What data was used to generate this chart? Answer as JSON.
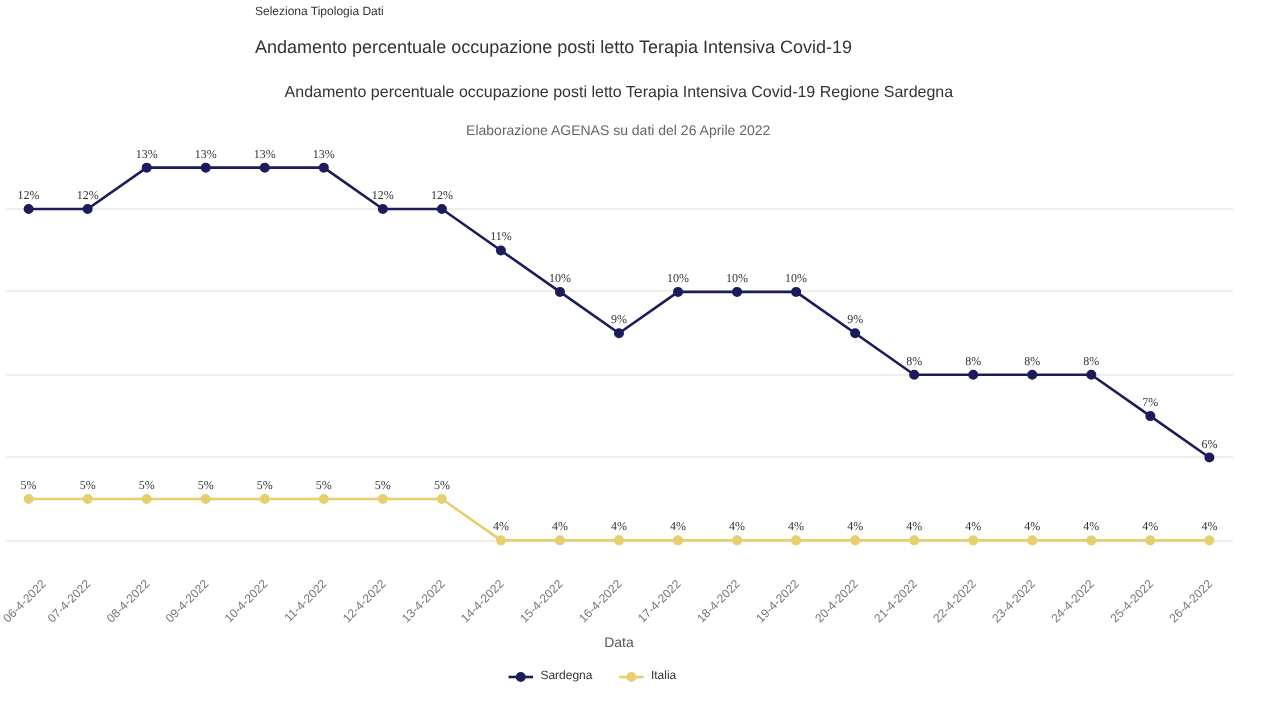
{
  "chart_data": {
    "type": "line",
    "title": "Andamento percentuale occupazione posti letto Terapia Intensiva Covid-19 Regione Sardegna",
    "subtitle": "Elaborazione AGENAS su dati del 26 Aprile 2022",
    "xlabel": "Data",
    "annotations": [
      "Seleziona Tipologia Dati",
      "Andamento percentuale occupazione posti letto Terapia Intensiva Covid-19"
    ],
    "categories": [
      "06-4-2022",
      "07-4-2022",
      "08-4-2022",
      "09-4-2022",
      "10-4-2022",
      "11-4-2022",
      "12-4-2022",
      "13-4-2022",
      "14-4-2022",
      "15-4-2022",
      "16-4-2022",
      "17-4-2022",
      "18-4-2022",
      "19-4-2022",
      "20-4-2022",
      "21-4-2022",
      "22-4-2022",
      "23-4-2022",
      "24-4-2022",
      "25-4-2022",
      "26-4-2022"
    ],
    "series": [
      {
        "name": "Sardegna",
        "color": "#1c1c5c",
        "values": [
          12,
          12,
          13,
          13,
          13,
          13,
          12,
          12,
          11,
          10,
          9,
          10,
          10,
          10,
          9,
          8,
          8,
          8,
          8,
          7,
          6
        ],
        "value_labels": [
          "12%",
          "12%",
          "13%",
          "13%",
          "13%",
          "13%",
          "12%",
          "12%",
          "11%",
          "10%",
          "9%",
          "10%",
          "10%",
          "10%",
          "9%",
          "8%",
          "8%",
          "8%",
          "8%",
          "7%",
          "6%"
        ]
      },
      {
        "name": "Italia",
        "color": "#e6cf6e",
        "values": [
          5,
          5,
          5,
          5,
          5,
          5,
          5,
          5,
          4,
          4,
          4,
          4,
          4,
          4,
          4,
          4,
          4,
          4,
          4,
          4,
          4
        ],
        "value_labels": [
          "5%",
          "5%",
          "5%",
          "5%",
          "5%",
          "5%",
          "5%",
          "5%",
          "4%",
          "4%",
          "4%",
          "4%",
          "4%",
          "4%",
          "4%",
          "4%",
          "4%",
          "4%",
          "4%",
          "4%",
          "4%"
        ]
      }
    ],
    "tick_labels": "x",
    "grid": "y",
    "legend": "bottom",
    "marker": "circle",
    "line_style": "solid"
  }
}
